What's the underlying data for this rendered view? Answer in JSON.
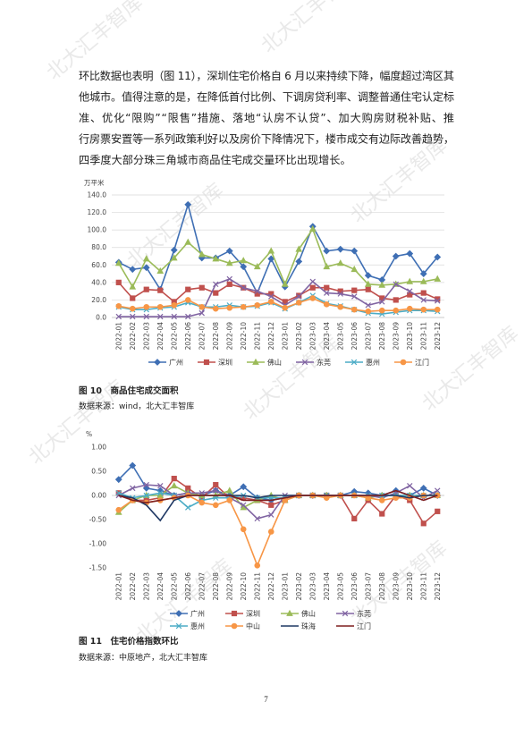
{
  "watermark": "北大汇丰智库",
  "paragraph": [
    "环比数据也表明（图 11），深圳住宅价格自 6 月以来持续下降，幅度超过湾区其",
    "他城市。值得注意的是，在降低首付比例、下调房贷利率、调整普通住宅认定标",
    "准、优化“限购”“限售”措施、落地“认房不认贷”、加大购房财税补贴、推",
    "行房票安置等一系列政策利好以及房价下降情况下，楼市成交有边际改善趋势，",
    "四季度大部分珠三角城市商品住宅成交量环比出现增长。"
  ],
  "chart_data": [
    {
      "type": "line",
      "y_label": "万平米",
      "caption": "图 10　商品住宅成交面积",
      "source": "数据来源：wind，北大汇丰智库",
      "categories": [
        "2022-01",
        "2022-02",
        "2022-03",
        "2022-04",
        "2022-05",
        "2022-06",
        "2022-07",
        "2022-08",
        "2022-09",
        "2022-10",
        "2022-11",
        "2022-12",
        "2023-01",
        "2023-02",
        "2023-03",
        "2023-04",
        "2023-05",
        "2023-06",
        "2023-07",
        "2023-08",
        "2023-09",
        "2023-10",
        "2023-11",
        "2023-12"
      ],
      "ylim": [
        0,
        140
      ],
      "yticks": [
        {
          "value": 0,
          "label": "0.0"
        },
        {
          "value": 20,
          "label": "20.0"
        },
        {
          "value": 40,
          "label": "40.0"
        },
        {
          "value": 60,
          "label": "60.0"
        },
        {
          "value": 80,
          "label": "80.0"
        },
        {
          "value": 100,
          "label": "100.0"
        },
        {
          "value": 120,
          "label": "120.0"
        },
        {
          "value": 140,
          "label": "140.0"
        }
      ],
      "grid": true,
      "series": [
        {
          "name": "广州",
          "color": "#3f6fb4",
          "marker": "diamond",
          "values": [
            63,
            55,
            57,
            32,
            77,
            129,
            68,
            68,
            76,
            58,
            28,
            67,
            35,
            64,
            104,
            76,
            78,
            76,
            48,
            43,
            70,
            73,
            50,
            69
          ]
        },
        {
          "name": "深圳",
          "color": "#c0504d",
          "marker": "square",
          "values": [
            40,
            22,
            32,
            31,
            18,
            32,
            34,
            28,
            38,
            34,
            27,
            27,
            18,
            25,
            34,
            34,
            30,
            31,
            32,
            22,
            20,
            26,
            28,
            21
          ]
        },
        {
          "name": "佛山",
          "color": "#9bbb59",
          "marker": "triangle",
          "values": [
            62,
            35,
            67,
            53,
            68,
            86,
            72,
            67,
            62,
            65,
            58,
            76,
            38,
            78,
            101,
            58,
            62,
            55,
            38,
            37,
            38,
            41,
            41,
            44
          ]
        },
        {
          "name": "东莞",
          "color": "#8064a2",
          "marker": "x",
          "values": [
            1,
            1,
            1,
            1,
            1,
            1,
            5,
            38,
            44,
            34,
            30,
            24,
            14,
            24,
            41,
            28,
            27,
            24,
            14,
            18,
            38,
            30,
            20,
            19
          ]
        },
        {
          "name": "惠州",
          "color": "#4bacc6",
          "marker": "x",
          "values": [
            12,
            9,
            9,
            11,
            12,
            17,
            12,
            12,
            14,
            12,
            13,
            17,
            10,
            17,
            25,
            16,
            13,
            9,
            5,
            4,
            6,
            8,
            8,
            7
          ]
        },
        {
          "name": "江门",
          "color": "#f79646",
          "marker": "circle",
          "values": [
            13,
            10,
            12,
            12,
            14,
            20,
            12,
            10,
            11,
            12,
            14,
            18,
            11,
            17,
            22,
            15,
            12,
            9,
            7,
            8,
            8,
            10,
            9,
            9
          ]
        }
      ]
    },
    {
      "type": "line",
      "y_label": "%",
      "caption": "图 11　住宅价格指数环比",
      "source": "数据来源：中原地产，北大汇丰智库",
      "categories": [
        "2022-01",
        "2022-02",
        "2022-03",
        "2022-04",
        "2022-05",
        "2022-06",
        "2022-07",
        "2022-08",
        "2022-09",
        "2022-10",
        "2022-11",
        "2022-12",
        "2023-01",
        "2023-02",
        "2023-03",
        "2023-04",
        "2023-05",
        "2023-06",
        "2023-07",
        "2023-08",
        "2023-09",
        "2023-10",
        "2023-11",
        "2023-12"
      ],
      "ylim": [
        -1.5,
        1.0
      ],
      "yticks": [
        {
          "value": -1.5,
          "label": "-1.50"
        },
        {
          "value": -1,
          "label": "-1.00"
        },
        {
          "value": -0.5,
          "label": "-0.50"
        },
        {
          "value": 0,
          "label": "0.00"
        },
        {
          "value": 0.5,
          "label": "0.50"
        },
        {
          "value": 1,
          "label": "1.00"
        }
      ],
      "grid": false,
      "series": [
        {
          "name": "广州",
          "color": "#3f6fb4",
          "marker": "diamond",
          "values": [
            0.33,
            0.62,
            0.15,
            0.1,
            0,
            0.05,
            0,
            0.1,
            0,
            0.18,
            -0.05,
            -0.1,
            -0.05,
            0,
            0,
            0,
            0,
            0.08,
            0.05,
            0,
            0.1,
            0,
            0.15,
            0
          ]
        },
        {
          "name": "深圳",
          "color": "#c0504d",
          "marker": "square",
          "values": [
            0.05,
            -0.1,
            -0.1,
            -0.05,
            0.35,
            0.15,
            -0.05,
            0.22,
            -0.05,
            -0.05,
            -0.1,
            -0.2,
            -0.1,
            0,
            0,
            0,
            0,
            -0.48,
            -0.1,
            -0.38,
            0,
            -0.1,
            -0.58,
            -0.33
          ]
        },
        {
          "name": "佛山",
          "color": "#9bbb59",
          "marker": "triangle",
          "values": [
            -0.35,
            -0.1,
            0,
            0,
            0.2,
            0.05,
            0,
            0,
            0.1,
            -0.25,
            -0.1,
            0,
            -0.1,
            0,
            0,
            0,
            0,
            0,
            -0.05,
            0,
            0,
            0,
            0,
            0
          ]
        },
        {
          "name": "东莞",
          "color": "#8064a2",
          "marker": "x",
          "values": [
            0,
            0.15,
            0.22,
            0.2,
            0,
            0.05,
            0.05,
            0.1,
            -0.05,
            -0.2,
            -0.48,
            -0.4,
            0,
            0,
            0,
            0,
            0,
            0,
            0,
            -0.05,
            0.05,
            0.2,
            -0.05,
            0.1
          ]
        },
        {
          "name": "惠州",
          "color": "#4bacc6",
          "marker": "x",
          "values": [
            0.05,
            -0.05,
            0,
            0.05,
            0,
            -0.25,
            -0.1,
            -0.05,
            -0.05,
            0,
            -0.05,
            -0.05,
            -0.05,
            0,
            0,
            0,
            0,
            0,
            0,
            0,
            0,
            0,
            0,
            0
          ]
        },
        {
          "name": "中山",
          "color": "#f79646",
          "marker": "circle",
          "values": [
            -0.3,
            -0.1,
            -0.15,
            -0.1,
            -0.05,
            0,
            -0.15,
            -0.2,
            -0.1,
            -0.7,
            -1.45,
            -0.75,
            -0.1,
            0,
            0,
            -0.05,
            0,
            0,
            -0.05,
            -0.1,
            -0.05,
            -0.05,
            0,
            0
          ]
        },
        {
          "name": "珠海",
          "color": "#1f3864",
          "marker": "none",
          "values": [
            0,
            -0.05,
            -0.2,
            -0.52,
            -0.1,
            0,
            0,
            0,
            0,
            0,
            -0.05,
            0,
            0,
            0,
            0,
            0,
            0,
            0,
            0,
            0,
            0,
            -0.05,
            0,
            0
          ]
        },
        {
          "name": "江门",
          "color": "#7f1f1f",
          "marker": "none",
          "values": [
            0,
            -0.1,
            -0.15,
            -0.1,
            -0.05,
            0,
            0,
            0,
            0,
            -0.1,
            -0.1,
            -0.1,
            -0.05,
            0,
            0,
            0,
            0,
            0,
            0,
            0,
            0.1,
            0,
            -0.1,
            0
          ]
        }
      ]
    }
  ],
  "page_number": "7"
}
